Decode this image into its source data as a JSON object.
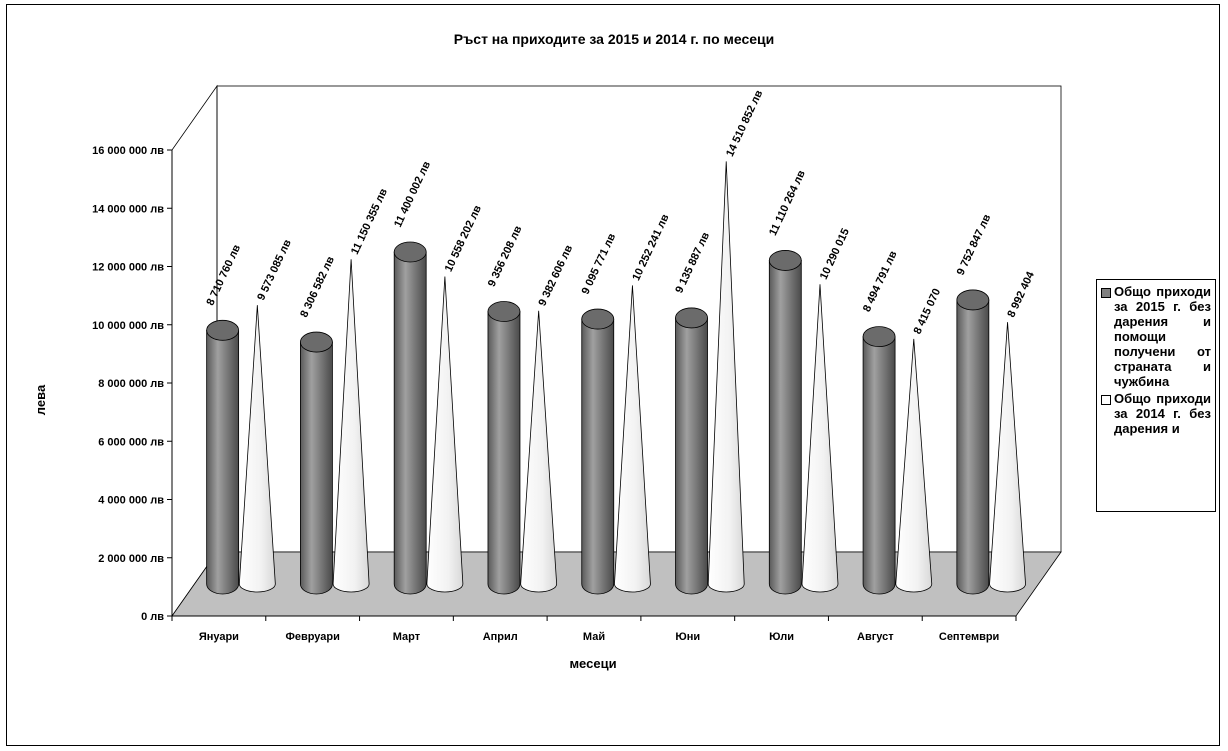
{
  "chart_data": {
    "type": "bar",
    "title": "Ръст на приходите за 2015 и 2014 г. по месеци",
    "xlabel": "месеци",
    "ylabel": "лева",
    "ylim": [
      0,
      16000000
    ],
    "yticks": [
      "0 лв",
      "2 000 000 лв",
      "4 000 000 лв",
      "6 000 000 лв",
      "8 000 000 лв",
      "10 000 000 лв",
      "12 000 000 лв",
      "14 000 000 лв",
      "16 000 000 лв"
    ],
    "ytick_values": [
      0,
      2000000,
      4000000,
      6000000,
      8000000,
      10000000,
      12000000,
      14000000,
      16000000
    ],
    "categories": [
      "Януари",
      "Февруари",
      "Март",
      "Април",
      "Май",
      "Юни",
      "Юли",
      "Август",
      "Септември"
    ],
    "series": [
      {
        "name": "Общо приходи за 2015 г. без дарения и помощи получени от страната и чужбина",
        "shape": "cylinder",
        "color": "#808080",
        "values": [
          8710760,
          8306582,
          11400002,
          9356208,
          9095771,
          9135887,
          11110264,
          8494791,
          9752847
        ],
        "labels": [
          "8 710 760 лв",
          "8 306 582 лв",
          "11 400 002 лв",
          "9 356 208 лв",
          "9 095 771 лв",
          "9 135 887 лв",
          "11 110 264 лв",
          "8 494 791 лв",
          "9 752 847 лв"
        ]
      },
      {
        "name": "Общо приходи за 2014 г. без дарения и",
        "shape": "cone",
        "color": "#ffffff",
        "values": [
          9573085,
          11150355,
          10558202,
          9382606,
          10252241,
          14510852,
          10290015,
          8415070,
          8992404
        ],
        "labels": [
          "9 573 085 лв",
          "11 150 355 лв",
          "10 558 202 лв",
          "9 382 606 лв",
          "10 252 241 лв",
          "14 510 852 лв",
          "10 290 015",
          "8 415 070",
          "8 992 404"
        ]
      }
    ],
    "grid": false,
    "legend": "right",
    "floor_color": "#c0c0c0"
  }
}
